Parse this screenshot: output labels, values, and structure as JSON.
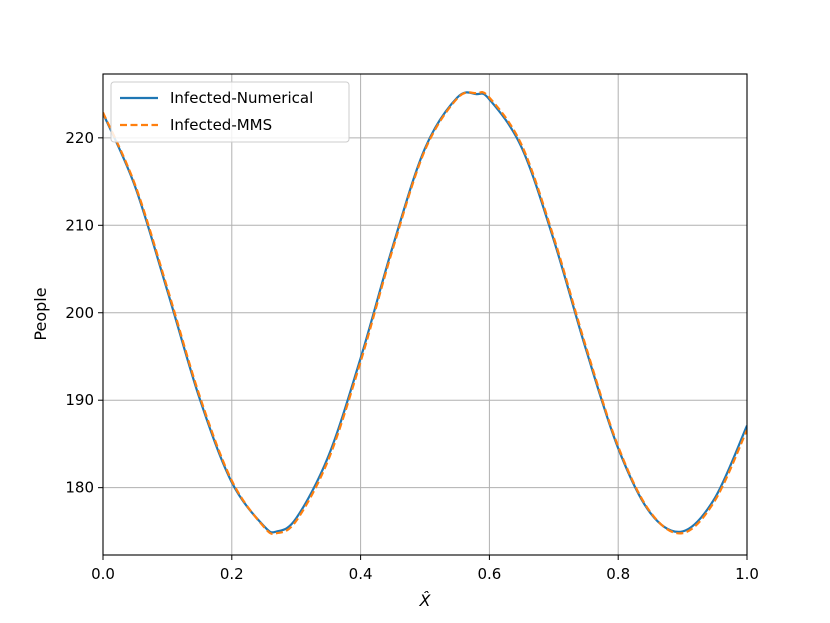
{
  "chart_data": {
    "type": "line",
    "title": "",
    "xlabel": "X̂",
    "ylabel": "People",
    "xlim": [
      0.0,
      1.0
    ],
    "ylim": [
      172.3,
      227.3
    ],
    "xticks": [
      0.0,
      0.2,
      0.4,
      0.6,
      0.8,
      1.0
    ],
    "xtick_labels": [
      "0.0",
      "0.2",
      "0.4",
      "0.6",
      "0.8",
      "1.0"
    ],
    "yticks": [
      180,
      190,
      200,
      210,
      220
    ],
    "ytick_labels": [
      "180",
      "190",
      "200",
      "210",
      "220"
    ],
    "grid": true,
    "legend_position": "upper-left",
    "series": [
      {
        "name": "Infected-Numerical",
        "color": "#1f77b4",
        "style": "solid",
        "x": [
          0.0,
          0.05,
          0.1,
          0.15,
          0.2,
          0.25,
          0.27,
          0.3,
          0.35,
          0.4,
          0.45,
          0.5,
          0.55,
          0.58,
          0.6,
          0.65,
          0.7,
          0.75,
          0.8,
          0.85,
          0.9,
          0.95,
          1.0
        ],
        "y": [
          222.8,
          214.4,
          202.5,
          190.2,
          180.6,
          175.6,
          175.0,
          176.5,
          183.6,
          194.8,
          207.6,
          218.8,
          224.6,
          225.0,
          224.4,
          218.9,
          208.3,
          195.8,
          184.5,
          177.1,
          175.0,
          178.8,
          187.1
        ]
      },
      {
        "name": "Infected-MMS",
        "color": "#ff7f0e",
        "style": "dashed",
        "x": [
          0.0,
          0.05,
          0.1,
          0.15,
          0.2,
          0.25,
          0.27,
          0.3,
          0.35,
          0.4,
          0.45,
          0.5,
          0.55,
          0.58,
          0.6,
          0.65,
          0.7,
          0.75,
          0.8,
          0.85,
          0.9,
          0.95,
          1.0
        ],
        "y": [
          222.9,
          214.6,
          202.8,
          190.5,
          180.8,
          175.5,
          174.8,
          176.2,
          183.2,
          194.4,
          207.3,
          218.6,
          224.5,
          225.1,
          224.6,
          219.2,
          208.6,
          196.1,
          184.7,
          177.2,
          174.8,
          178.5,
          186.6
        ]
      }
    ]
  }
}
